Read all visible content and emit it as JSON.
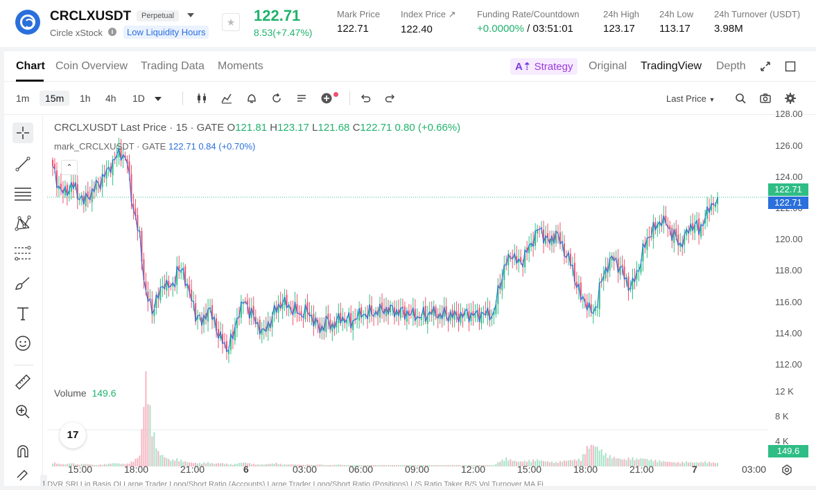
{
  "header": {
    "symbol": "CRCLXUSDT",
    "badge": "Perpetual",
    "subtitle": "Circle xStock",
    "liquidity_tag": "Low Liquidity Hours",
    "last_price": "122.71",
    "change": "8.53(+7.47%)",
    "stats": [
      {
        "label": "Mark Price",
        "value": "122.71"
      },
      {
        "label": "Index Price ↗",
        "value": "122.40"
      },
      {
        "label": "Funding Rate/Countdown",
        "value_green": "+0.0000%",
        "value_rest": " / 03:51:01"
      },
      {
        "label": "24h High",
        "value": "123.17"
      },
      {
        "label": "24h Low",
        "value": "113.17"
      },
      {
        "label": "24h Turnover (USDT)",
        "value": "3.98M"
      }
    ]
  },
  "tabs": [
    "Chart",
    "Coin Overview",
    "Trading Data",
    "Moments"
  ],
  "right_tabs": {
    "strategy": "Strategy",
    "original": "Original",
    "tradingview": "TradingView",
    "depth": "Depth"
  },
  "timeframes": [
    "1m",
    "15m",
    "1h",
    "4h",
    "1D"
  ],
  "selected_timeframe": "15m",
  "price_source": "Last Price",
  "legend": {
    "title": "CRCLXUSDT Last Price · 15 · GATE",
    "o_label": "O",
    "o": "121.81",
    "h_label": "H",
    "h": "123.17",
    "l_label": "L",
    "l": "121.68",
    "c_label": "C",
    "c": "122.71",
    "change": "0.80 (+0.66%)",
    "mark_name": "mark_CRCLXUSDT · GATE",
    "mark_value": "122.71",
    "mark_change": "0.84 (+0.70%)"
  },
  "volume_label": "Volume",
  "volume_value": "149.6",
  "y_axis": [
    "128.00",
    "126.00",
    "124.00",
    "122.00",
    "120.00",
    "118.00",
    "116.00",
    "114.00",
    "112.00"
  ],
  "vol_axis": [
    "12 K",
    "8 K",
    "4 K"
  ],
  "price_badges": {
    "last": "122.71",
    "mark": "122.71",
    "volume": "149.6"
  },
  "x_axis": [
    "15:00",
    "18:00",
    "21:00",
    "6",
    "03:00",
    "06:00",
    "09:00",
    "12:00",
    "15:00",
    "18:00",
    "21:00",
    "7",
    "03:00"
  ],
  "bottom_tabs": "LDVR    SRI    Liq    Basis    OI    Large Trader Long/Short Ratio (Accounts)    Large Trader Long/Short Ratio (Positions)    L/S Ratio    Taker B/S Vol    Turnover    MA    Fi",
  "colors": {
    "up": "#2ebd85",
    "down": "#f0506e",
    "accent": "#2a6fdb"
  },
  "chart_data": {
    "type": "candlestick",
    "interval": "15m",
    "ylim": [
      112,
      128
    ],
    "close_path": [
      124.5,
      123.3,
      123.0,
      123.6,
      123.0,
      122.4,
      122.8,
      123.4,
      123.9,
      124.6,
      125.2,
      125.6,
      124.8,
      121.8,
      120.2,
      116.5,
      115.6,
      116.4,
      117.2,
      116.8,
      117.9,
      118.1,
      116.6,
      115.3,
      114.6,
      115.5,
      114.8,
      113.7,
      113.1,
      113.8,
      115.4,
      116.0,
      115.2,
      114.6,
      114.1,
      114.8,
      115.6,
      115.9,
      115.7,
      115.5,
      115.3,
      115.5,
      114.8,
      114.2,
      114.7,
      114.5,
      115.0,
      115.0,
      114.7,
      115.0,
      115.2,
      115.3,
      115.4,
      115.6,
      115.5,
      115.4,
      115.3,
      115.3,
      115.3,
      115.1,
      115.2,
      115.3,
      115.1,
      115.2,
      115.2,
      115.2,
      115.2,
      115.2,
      115.1,
      115.2,
      115.3,
      115.3,
      117.3,
      118.5,
      119.0,
      118.4,
      119.0,
      119.8,
      120.7,
      120.3,
      119.7,
      120.4,
      119.6,
      118.9,
      117.7,
      116.3,
      115.8,
      115.1,
      116.8,
      118.2,
      118.9,
      118.4,
      117.6,
      116.8,
      117.8,
      119.3,
      120.4,
      120.8,
      121.2,
      120.8,
      120.2,
      119.7,
      120.5,
      121.0,
      120.6,
      121.3,
      122.2,
      122.71
    ],
    "volume_path": [
      0.6,
      0.4,
      0.3,
      0.5,
      0.3,
      0.4,
      0.3,
      0.2,
      0.3,
      0.4,
      0.5,
      0.4,
      0.4,
      0.8,
      1.6,
      13.2,
      5.8,
      2.1,
      1.4,
      0.9,
      1.1,
      0.8,
      0.6,
      0.5,
      0.5,
      0.6,
      0.4,
      0.5,
      0.4,
      0.3,
      0.5,
      0.6,
      0.4,
      0.3,
      0.3,
      0.4,
      0.5,
      0.3,
      0.3,
      0.3,
      0.2,
      0.3,
      0.2,
      0.3,
      0.2,
      0.2,
      0.3,
      0.2,
      0.2,
      0.2,
      0.2,
      0.2,
      0.2,
      0.2,
      0.2,
      0.2,
      0.2,
      0.2,
      0.2,
      0.2,
      0.2,
      0.2,
      0.2,
      0.2,
      0.2,
      0.2,
      0.2,
      0.2,
      0.2,
      0.2,
      0.2,
      0.2,
      0.8,
      1.2,
      0.9,
      0.7,
      0.8,
      0.9,
      1.0,
      0.8,
      0.7,
      0.6,
      0.8,
      0.9,
      1.0,
      1.1,
      2.8,
      3.2,
      2.6,
      1.8,
      1.4,
      1.2,
      1.0,
      1.3,
      1.1,
      1.2,
      1.0,
      0.9,
      0.8,
      0.7,
      0.6,
      0.6,
      0.7,
      0.6,
      0.6,
      0.7,
      0.6,
      0.5
    ]
  }
}
